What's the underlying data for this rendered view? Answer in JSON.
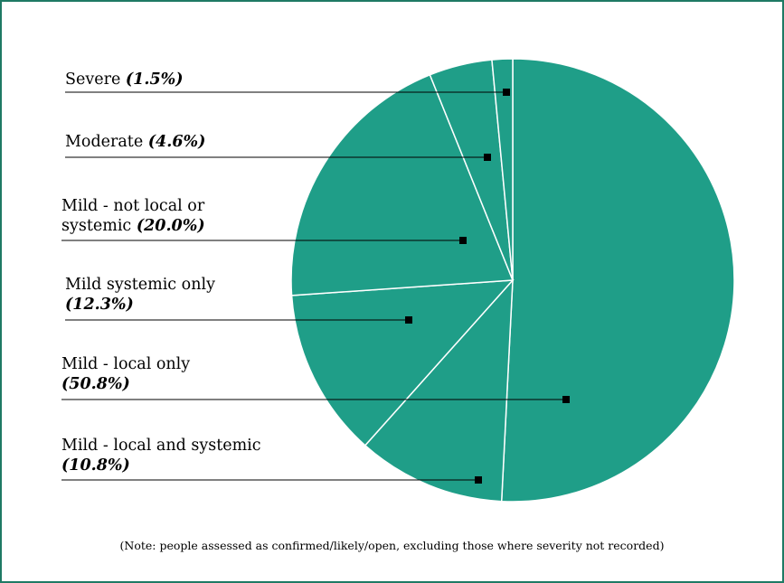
{
  "chart_data": {
    "type": "pie",
    "start_angle_deg": 0,
    "direction": "clockwise",
    "slice_color": "#1f9e88",
    "separator_color": "#ffffff",
    "slices": [
      {
        "name_lines": [
          "Mild - local only"
        ],
        "pct_label": "(50.8%)",
        "value": 50.8
      },
      {
        "name_lines": [
          "Mild - local and systemic"
        ],
        "pct_label": "(10.8%)",
        "value": 10.8
      },
      {
        "name_lines": [
          "Mild systemic only"
        ],
        "pct_label": "(12.3%)",
        "value": 12.3
      },
      {
        "name_lines": [
          "Mild - not local or",
          "systemic"
        ],
        "pct_label": "(20.0%)",
        "value": 20.0
      },
      {
        "name_lines": [
          "Moderate"
        ],
        "pct_label": "(4.6%)",
        "value": 4.6
      },
      {
        "name_lines": [
          "Severe"
        ],
        "pct_label": "(1.5%)",
        "value": 1.5
      }
    ],
    "note": "(Note: people assessed as confirmed/likely/open, excluding those where severity not recorded)"
  }
}
